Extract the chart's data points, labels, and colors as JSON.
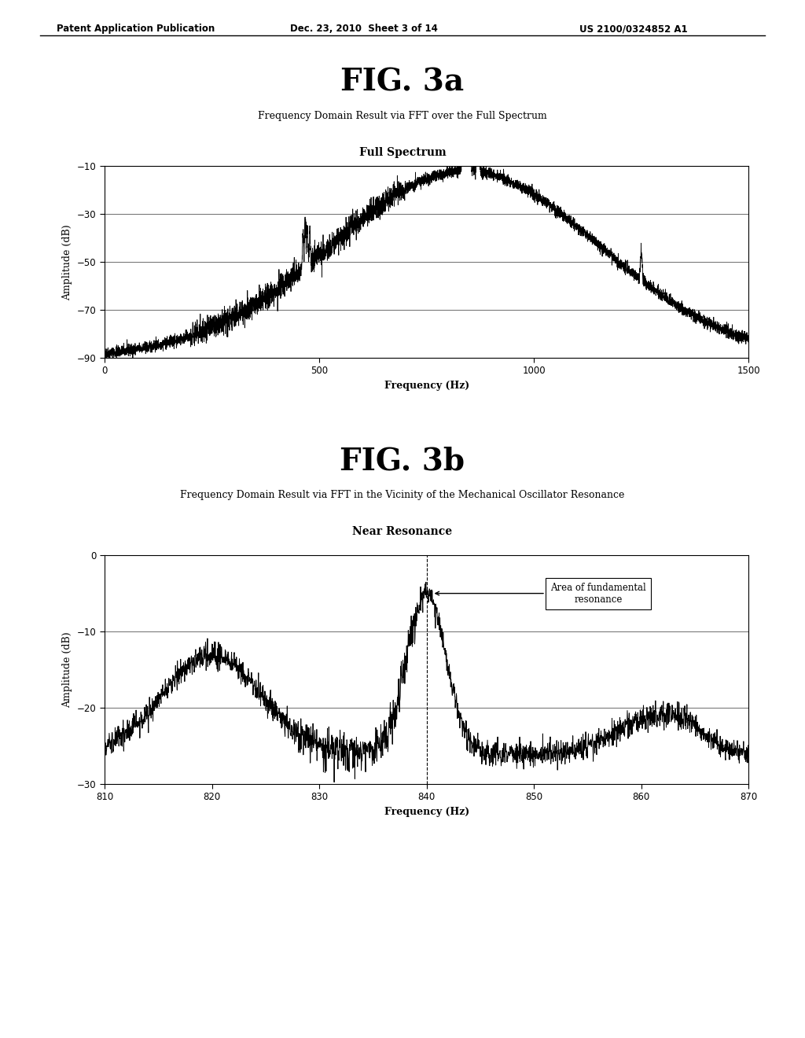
{
  "header_left": "Patent Application Publication",
  "header_mid": "Dec. 23, 2010  Sheet 3 of 14",
  "header_right": "US 2100/0324852 A1",
  "fig3a_title": "FIG. 3a",
  "fig3a_subtitle": "Frequency Domain Result via FFT over the Full Spectrum",
  "fig3a_chart_title": "Full Spectrum",
  "fig3a_xlabel": "Frequency (Hz)",
  "fig3a_ylabel": "Amplitude (dB)",
  "fig3a_xlim": [
    0,
    1500
  ],
  "fig3a_ylim": [
    -90,
    -10
  ],
  "fig3a_xticks": [
    0,
    500,
    1000,
    1500
  ],
  "fig3a_yticks": [
    -90,
    -70,
    -50,
    -30,
    -10
  ],
  "fig3b_title": "FIG. 3b",
  "fig3b_subtitle": "Frequency Domain Result via FFT in the Vicinity of the Mechanical Oscillator Resonance",
  "fig3b_chart_title": "Near Resonance",
  "fig3b_xlabel": "Frequency (Hz)",
  "fig3b_ylabel": "Amplitude (dB)",
  "fig3b_xlim": [
    810,
    870
  ],
  "fig3b_ylim": [
    -30,
    0
  ],
  "fig3b_xticks": [
    810,
    820,
    830,
    840,
    850,
    860,
    870
  ],
  "fig3b_yticks": [
    -30,
    -20,
    -10,
    0
  ],
  "fig3b_resonance_freq": 840,
  "fig3b_annotation": "Area of fundamental\nresonance",
  "background_color": "#ffffff",
  "line_color": "#000000"
}
